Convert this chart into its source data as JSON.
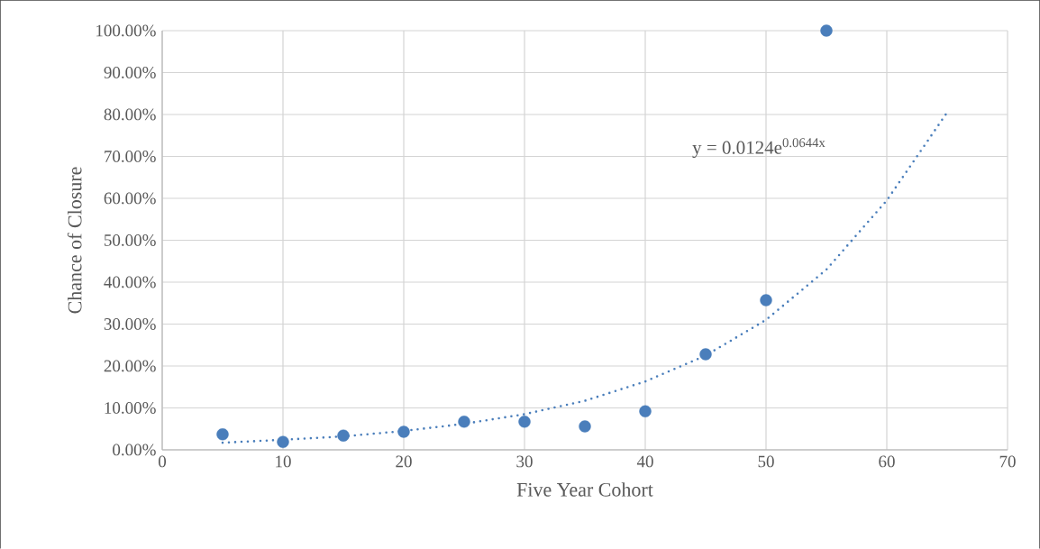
{
  "chart_data": {
    "type": "scatter",
    "xlabel": "Five Year Cohort",
    "ylabel": "Chance of Closure",
    "annotations": [
      "y = 0.0124e$^{0.0644x}$"
    ],
    "xlim": [
      0,
      70
    ],
    "xticks": [
      0,
      10,
      20,
      30,
      40,
      50,
      60,
      70
    ],
    "ylim": [
      0,
      100
    ],
    "yticks": [
      {
        "value": 0,
        "label": "0.00%"
      },
      {
        "value": 10,
        "label": "10.00%"
      },
      {
        "value": 20,
        "label": "20.00%"
      },
      {
        "value": 30,
        "label": "30.00%"
      },
      {
        "value": 40,
        "label": "40.00%"
      },
      {
        "value": 50,
        "label": "50.00%"
      },
      {
        "value": 60,
        "label": "60.00%"
      },
      {
        "value": 70,
        "label": "70.00%"
      },
      {
        "value": 80,
        "label": "80.00%"
      },
      {
        "value": 90,
        "label": "90.00%"
      },
      {
        "value": 100,
        "label": "100.00%"
      }
    ],
    "grid": true,
    "series": [
      {
        "color": "#4a7ebb",
        "marker": "circle",
        "x": [
          5,
          10,
          15,
          20,
          25,
          30,
          35,
          40,
          45,
          50,
          55
        ],
        "values": [
          3.7,
          1.9,
          3.4,
          4.3,
          6.7,
          6.7,
          5.6,
          9.2,
          22.8,
          35.7,
          100
        ]
      },
      {
        "type": "line",
        "color": "#4a7ebb",
        "marker": "none",
        "line_style": "dotted",
        "x": [
          5,
          10,
          15,
          20,
          25,
          30,
          35,
          40,
          45,
          50,
          55,
          60,
          65
        ],
        "values": [
          1.7,
          2.4,
          3.2,
          4.5,
          6.2,
          8.5,
          11.7,
          16.3,
          22.5,
          31.0,
          43.0,
          59.5,
          80.5
        ]
      }
    ]
  }
}
